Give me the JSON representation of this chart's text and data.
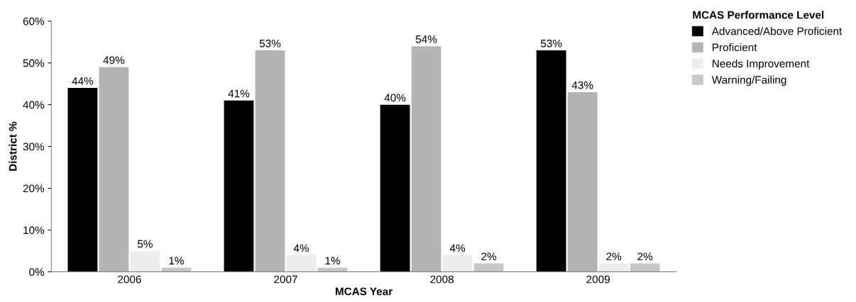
{
  "chart_data": {
    "type": "bar",
    "xlabel": "MCAS Year",
    "ylabel": "District %",
    "legend_title": "MCAS Performance Level",
    "categories": [
      "2006",
      "2007",
      "2008",
      "2009"
    ],
    "series": [
      {
        "name": "Advanced/Above Proficient",
        "color": "#000000",
        "values": [
          44,
          41,
          40,
          53
        ],
        "value_labels": [
          "44%",
          "41%",
          "40%",
          "53%"
        ]
      },
      {
        "name": "Proficient",
        "color": "#b4b4b4",
        "values": [
          49,
          53,
          54,
          43
        ],
        "value_labels": [
          "49%",
          "53%",
          "54%",
          "43%"
        ]
      },
      {
        "name": "Needs Improvement",
        "color": "#ededed",
        "values": [
          5,
          4,
          4,
          2
        ],
        "value_labels": [
          "5%",
          "4%",
          "4%",
          "2%"
        ]
      },
      {
        "name": "Warning/Failing",
        "color": "#c8c8c8",
        "values": [
          1,
          1,
          2,
          2
        ],
        "value_labels": [
          "1%",
          "1%",
          "2%",
          "2%"
        ]
      }
    ],
    "ylim": [
      0,
      60
    ],
    "yticks": [
      {
        "value": 0,
        "label": "0%"
      },
      {
        "value": 10,
        "label": "10%"
      },
      {
        "value": 20,
        "label": "20%"
      },
      {
        "value": 30,
        "label": "30%"
      },
      {
        "value": 40,
        "label": "40%"
      },
      {
        "value": 50,
        "label": "50%"
      },
      {
        "value": 60,
        "label": "60%"
      }
    ],
    "legend": "top right",
    "grid": false
  }
}
